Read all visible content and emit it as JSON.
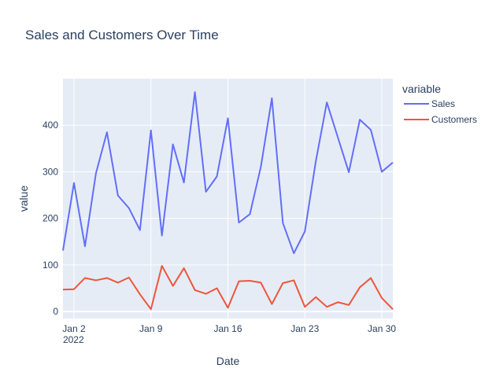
{
  "chart_data": {
    "type": "line",
    "title": "Sales and Customers Over Time",
    "xlabel": "Date",
    "ylabel": "value",
    "x": [
      "2022-01-01",
      "2022-01-02",
      "2022-01-03",
      "2022-01-04",
      "2022-01-05",
      "2022-01-06",
      "2022-01-07",
      "2022-01-08",
      "2022-01-09",
      "2022-01-10",
      "2022-01-11",
      "2022-01-12",
      "2022-01-13",
      "2022-01-14",
      "2022-01-15",
      "2022-01-16",
      "2022-01-17",
      "2022-01-18",
      "2022-01-19",
      "2022-01-20",
      "2022-01-21",
      "2022-01-22",
      "2022-01-23",
      "2022-01-24",
      "2022-01-25",
      "2022-01-26",
      "2022-01-27",
      "2022-01-28",
      "2022-01-29",
      "2022-01-30",
      "2022-01-31"
    ],
    "xlim": [
      "2022-01-01",
      "2022-01-31"
    ],
    "ylim": [
      -15,
      500
    ],
    "x_ticks": [
      {
        "date": "2022-01-02",
        "label": "Jan 2",
        "sublabel": "2022"
      },
      {
        "date": "2022-01-09",
        "label": "Jan 9",
        "sublabel": ""
      },
      {
        "date": "2022-01-16",
        "label": "Jan 16",
        "sublabel": ""
      },
      {
        "date": "2022-01-23",
        "label": "Jan 23",
        "sublabel": ""
      },
      {
        "date": "2022-01-30",
        "label": "Jan 30",
        "sublabel": ""
      }
    ],
    "y_ticks": [
      0,
      100,
      200,
      300,
      400
    ],
    "grid": true,
    "legend_position": "right",
    "legend_title": "variable",
    "series": [
      {
        "name": "Sales",
        "color": "#636efa",
        "values": [
          131,
          276,
          140,
          297,
          385,
          249,
          222,
          175,
          389,
          163,
          359,
          277,
          471,
          257,
          290,
          415,
          191,
          209,
          311,
          458,
          190,
          125,
          172,
          323,
          449,
          374,
          299,
          412,
          390,
          300,
          320
        ]
      },
      {
        "name": "Customers",
        "color": "#ef553b",
        "values": [
          47,
          48,
          72,
          67,
          72,
          62,
          73,
          37,
          5,
          98,
          55,
          93,
          46,
          38,
          50,
          8,
          65,
          66,
          62,
          16,
          61,
          67,
          10,
          31,
          10,
          20,
          14,
          52,
          72,
          29,
          5
        ]
      }
    ]
  }
}
